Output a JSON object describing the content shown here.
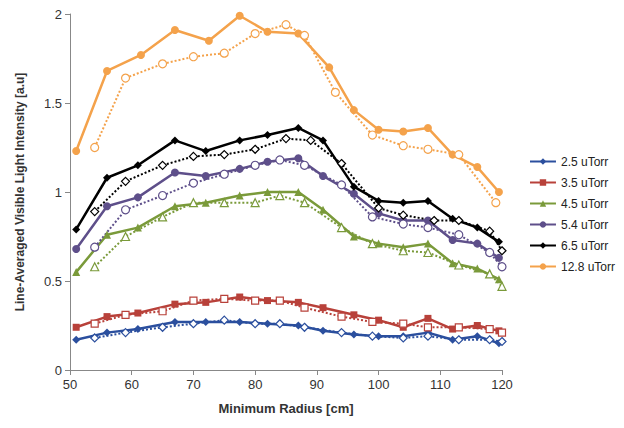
{
  "chart_data": {
    "type": "line",
    "x_label": "Minimum Radius [cm]",
    "y_label": "Line-Averaged Visible Light Intensity [a.u]",
    "xlim": [
      50,
      120
    ],
    "xticks": [
      50,
      60,
      70,
      80,
      90,
      100,
      110,
      120
    ],
    "ylim": [
      0,
      2
    ],
    "yticks": [
      0,
      0.5,
      1,
      1.5,
      2
    ],
    "grid": false,
    "legend": "right",
    "series": [
      {
        "name": "2.5 uTorr",
        "color": "#2b4f9e",
        "marker": "diamond",
        "line_style": "solid",
        "x": [
          51,
          56,
          61,
          67,
          72,
          77.5,
          82,
          87,
          91,
          96,
          100,
          104,
          108,
          112,
          116,
          119.5
        ],
        "values": [
          0.17,
          0.21,
          0.23,
          0.27,
          0.27,
          0.27,
          0.26,
          0.25,
          0.22,
          0.2,
          0.19,
          0.19,
          0.21,
          0.17,
          0.19,
          0.15
        ]
      },
      {
        "name": "2.5 uTorr",
        "color": "#2b4f9e",
        "marker": "diamond-open",
        "line_style": "dotted",
        "x": [
          54,
          59,
          65,
          70,
          75,
          80,
          84,
          88,
          94,
          99,
          104,
          108,
          113,
          118,
          120
        ],
        "values": [
          0.18,
          0.21,
          0.24,
          0.26,
          0.28,
          0.26,
          0.26,
          0.24,
          0.21,
          0.19,
          0.18,
          0.19,
          0.17,
          0.17,
          0.16
        ]
      },
      {
        "name": "3.5 uTorr",
        "color": "#b8413a",
        "marker": "rect",
        "line_style": "solid",
        "x": [
          51,
          56,
          61,
          67,
          72,
          77.5,
          82,
          87,
          91,
          96,
          100,
          104,
          108,
          112,
          116,
          119.5
        ],
        "values": [
          0.24,
          0.3,
          0.32,
          0.37,
          0.38,
          0.41,
          0.39,
          0.38,
          0.35,
          0.31,
          0.28,
          0.24,
          0.29,
          0.23,
          0.25,
          0.22
        ]
      },
      {
        "name": "3.5 uTorr",
        "color": "#b8413a",
        "marker": "rect-open",
        "line_style": "dotted",
        "x": [
          54,
          59,
          65,
          70,
          75,
          80,
          84,
          88,
          94,
          99,
          104,
          108,
          113,
          118,
          120
        ],
        "values": [
          0.26,
          0.31,
          0.33,
          0.39,
          0.4,
          0.39,
          0.39,
          0.35,
          0.3,
          0.27,
          0.26,
          0.24,
          0.24,
          0.23,
          0.21
        ]
      },
      {
        "name": "4.5 uTorr",
        "color": "#7a9a3a",
        "marker": "triangle",
        "line_style": "solid",
        "x": [
          51,
          56,
          61,
          67,
          72,
          77.5,
          82,
          87,
          91,
          96,
          100,
          104,
          108,
          112,
          116,
          119.5
        ],
        "values": [
          0.55,
          0.76,
          0.8,
          0.92,
          0.94,
          0.98,
          1.0,
          1.0,
          0.9,
          0.75,
          0.71,
          0.69,
          0.71,
          0.6,
          0.57,
          0.51
        ]
      },
      {
        "name": "4.5 uTorr",
        "color": "#7a9a3a",
        "marker": "triangle-open",
        "line_style": "dotted",
        "x": [
          54,
          59,
          65,
          70,
          75,
          80,
          84,
          88,
          94,
          99,
          104,
          108,
          113,
          118,
          120
        ],
        "values": [
          0.58,
          0.75,
          0.86,
          0.94,
          0.94,
          0.94,
          0.98,
          0.94,
          0.8,
          0.71,
          0.67,
          0.66,
          0.59,
          0.54,
          0.47
        ]
      },
      {
        "name": "5.4 uTorr",
        "color": "#5e4f8a",
        "marker": "circle",
        "line_style": "solid",
        "x": [
          51,
          56,
          61,
          67,
          72,
          77.5,
          82,
          87,
          91,
          96,
          100,
          104,
          108,
          112,
          116,
          119.5
        ],
        "values": [
          0.68,
          0.92,
          0.97,
          1.11,
          1.09,
          1.13,
          1.17,
          1.19,
          1.09,
          0.99,
          0.88,
          0.84,
          0.84,
          0.73,
          0.71,
          0.63
        ]
      },
      {
        "name": "5.4 uTorr",
        "color": "#5e4f8a",
        "marker": "circle-open",
        "line_style": "dotted",
        "x": [
          54,
          59,
          65,
          70,
          75,
          80,
          84,
          88,
          94,
          99,
          104,
          108,
          113,
          118,
          120
        ],
        "values": [
          0.69,
          0.9,
          0.98,
          1.05,
          1.1,
          1.15,
          1.18,
          1.15,
          1.04,
          0.86,
          0.82,
          0.8,
          0.76,
          0.66,
          0.58
        ]
      },
      {
        "name": "6.5 uTorr",
        "color": "#000000",
        "marker": "diamond",
        "line_style": "solid",
        "x": [
          51,
          56,
          61,
          67,
          72,
          77.5,
          82,
          87,
          91,
          96,
          100,
          104,
          108,
          112,
          116,
          119.5
        ],
        "values": [
          0.79,
          1.08,
          1.15,
          1.29,
          1.23,
          1.29,
          1.32,
          1.36,
          1.29,
          1.03,
          0.95,
          0.94,
          0.95,
          0.85,
          0.8,
          0.72
        ]
      },
      {
        "name": "6.5 uTorr",
        "color": "#000000",
        "marker": "diamond-open",
        "line_style": "dotted",
        "x": [
          54,
          59,
          65,
          70,
          75,
          80,
          85,
          89,
          94,
          100,
          104,
          109,
          113,
          118,
          120
        ],
        "values": [
          0.89,
          1.06,
          1.15,
          1.2,
          1.21,
          1.24,
          1.3,
          1.29,
          1.16,
          0.91,
          0.87,
          0.84,
          0.84,
          0.78,
          0.67
        ]
      },
      {
        "name": "12.8 uTorr",
        "color": "#f4a24b",
        "marker": "circle",
        "line_style": "solid",
        "x": [
          51,
          56,
          61.5,
          67,
          72.5,
          77.5,
          82,
          87,
          92,
          96,
          100,
          104,
          108,
          112,
          116,
          119.5
        ],
        "values": [
          1.23,
          1.68,
          1.77,
          1.91,
          1.85,
          1.99,
          1.9,
          1.89,
          1.7,
          1.46,
          1.35,
          1.34,
          1.36,
          1.21,
          1.14,
          1.0
        ]
      },
      {
        "name": "12.8 uTorr",
        "color": "#f4a24b",
        "marker": "circle-open",
        "line_style": "dotted",
        "x": [
          54,
          59,
          65,
          70,
          75,
          80,
          85,
          88,
          93,
          99,
          104,
          108,
          113,
          119
        ],
        "values": [
          1.25,
          1.64,
          1.72,
          1.76,
          1.78,
          1.89,
          1.94,
          1.88,
          1.56,
          1.32,
          1.26,
          1.24,
          1.21,
          0.94
        ]
      }
    ]
  }
}
